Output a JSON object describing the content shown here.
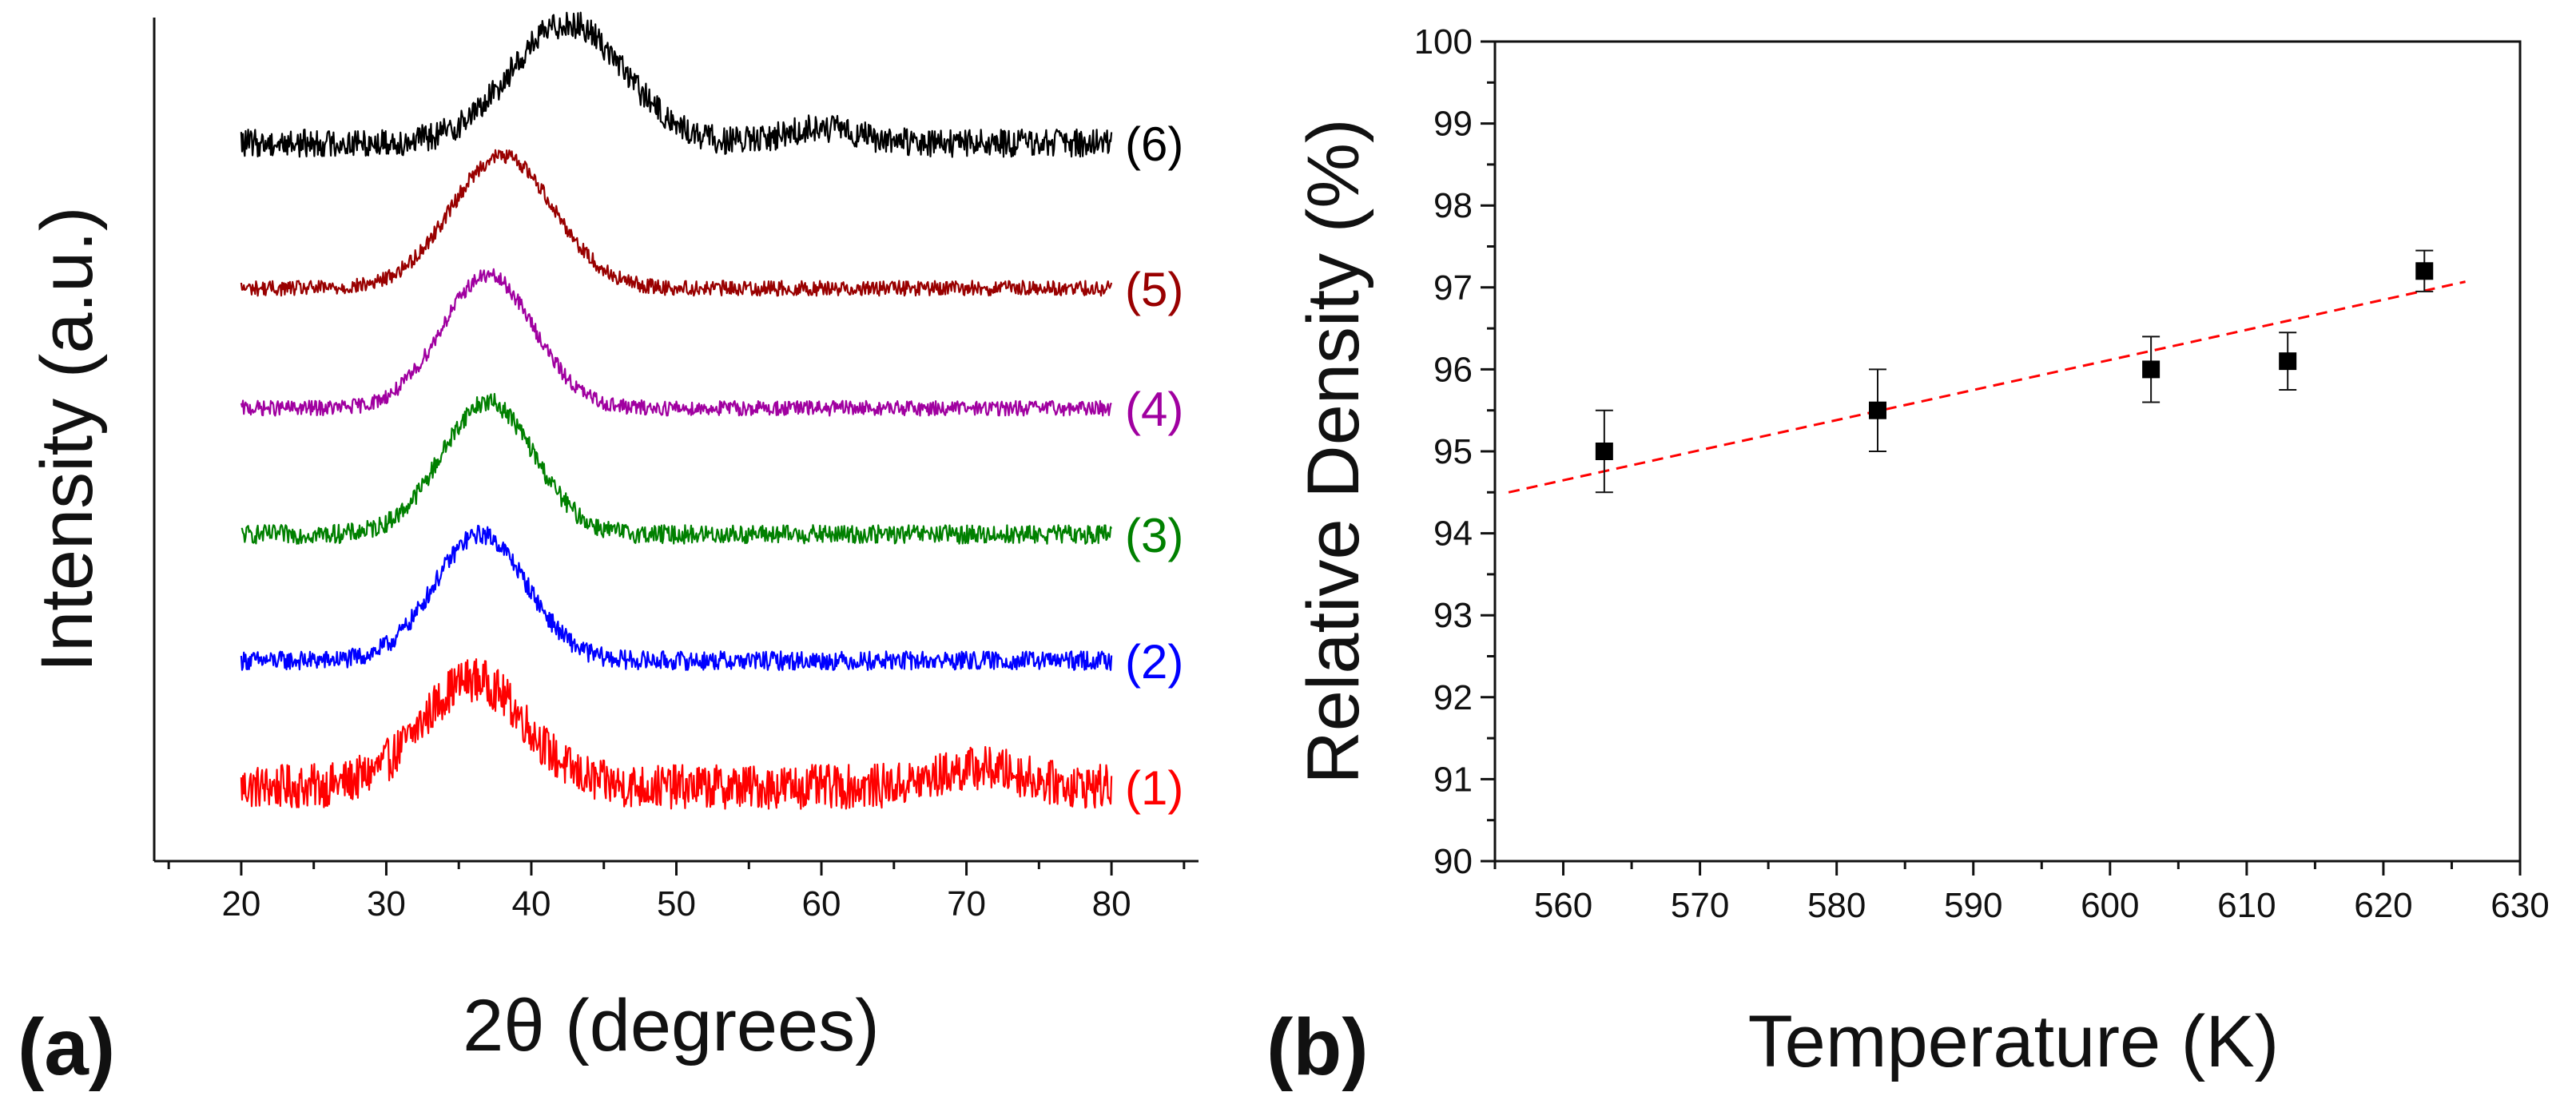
{
  "chart_data": [
    {
      "panel": "a",
      "panel_label": "(a)",
      "type": "line",
      "title": "",
      "xlabel": "2θ (degrees)",
      "ylabel": "Intensity (a.u.)",
      "xlim": [
        14,
        86
      ],
      "xticks": [
        20,
        30,
        40,
        50,
        60,
        70,
        80
      ],
      "xtick_labels": [
        "20",
        "30",
        "40",
        "50",
        "60",
        "70",
        "80"
      ],
      "x_range": [
        20,
        80
      ],
      "series": [
        {
          "name": "(1)",
          "label": "(1)",
          "color": "#ff0000",
          "baseline": 0.0,
          "peak_center": 36,
          "peak_width": 5.0,
          "peak_height": 0.85,
          "noise": 0.35,
          "bumps": [
            {
              "center": 71,
              "width": 4,
              "height": 0.15
            }
          ]
        },
        {
          "name": "(2)",
          "label": "(2)",
          "color": "#0000ff",
          "baseline": 1.0,
          "peak_center": 36.5,
          "peak_width": 4.5,
          "peak_height": 1.0,
          "noise": 0.15,
          "bumps": []
        },
        {
          "name": "(3)",
          "label": "(3)",
          "color": "#008000",
          "baseline": 2.0,
          "peak_center": 37,
          "peak_width": 4.5,
          "peak_height": 1.05,
          "noise": 0.15,
          "bumps": []
        },
        {
          "name": "(4)",
          "label": "(4)",
          "color": "#a000a0",
          "baseline": 3.0,
          "peak_center": 37,
          "peak_width": 4.5,
          "peak_height": 1.05,
          "noise": 0.12,
          "bumps": []
        },
        {
          "name": "(5)",
          "label": "(5)",
          "color": "#990000",
          "baseline": 3.95,
          "peak_center": 38,
          "peak_width": 5.0,
          "peak_height": 1.05,
          "noise": 0.12,
          "bumps": []
        },
        {
          "name": "(6)",
          "label": "(6)",
          "color": "#000000",
          "baseline": 5.1,
          "peak_center": 42.5,
          "peak_width": 5.5,
          "peak_height": 0.95,
          "noise": 0.22,
          "bumps": [
            {
              "center": 60,
              "width": 3.5,
              "height": 0.12
            }
          ]
        }
      ]
    },
    {
      "panel": "b",
      "panel_label": "(b)",
      "type": "scatter",
      "title": "",
      "xlabel": "Temperature (K)",
      "ylabel": "Relative Density (%)",
      "xlim": [
        555,
        630
      ],
      "ylim": [
        90,
        100
      ],
      "xticks": [
        560,
        570,
        580,
        590,
        600,
        610,
        620,
        630
      ],
      "xtick_labels": [
        "560",
        "570",
        "580",
        "590",
        "600",
        "610",
        "620",
        "630"
      ],
      "yticks": [
        90,
        91,
        92,
        93,
        94,
        95,
        96,
        97,
        98,
        99,
        100
      ],
      "ytick_labels": [
        "90",
        "91",
        "92",
        "93",
        "94",
        "95",
        "96",
        "97",
        "98",
        "99",
        "100"
      ],
      "points": [
        {
          "x": 563,
          "y": 95.0,
          "err": 0.5
        },
        {
          "x": 583,
          "y": 95.5,
          "err": 0.5
        },
        {
          "x": 603,
          "y": 96.0,
          "err": 0.4
        },
        {
          "x": 613,
          "y": 96.1,
          "err": 0.35
        },
        {
          "x": 623,
          "y": 97.2,
          "err": 0.25
        }
      ],
      "fit_line": {
        "x": [
          556,
          626
        ],
        "y": [
          94.5,
          97.07
        ],
        "color": "#ff0000",
        "style": "dashed"
      },
      "marker_color": "#000000"
    }
  ]
}
